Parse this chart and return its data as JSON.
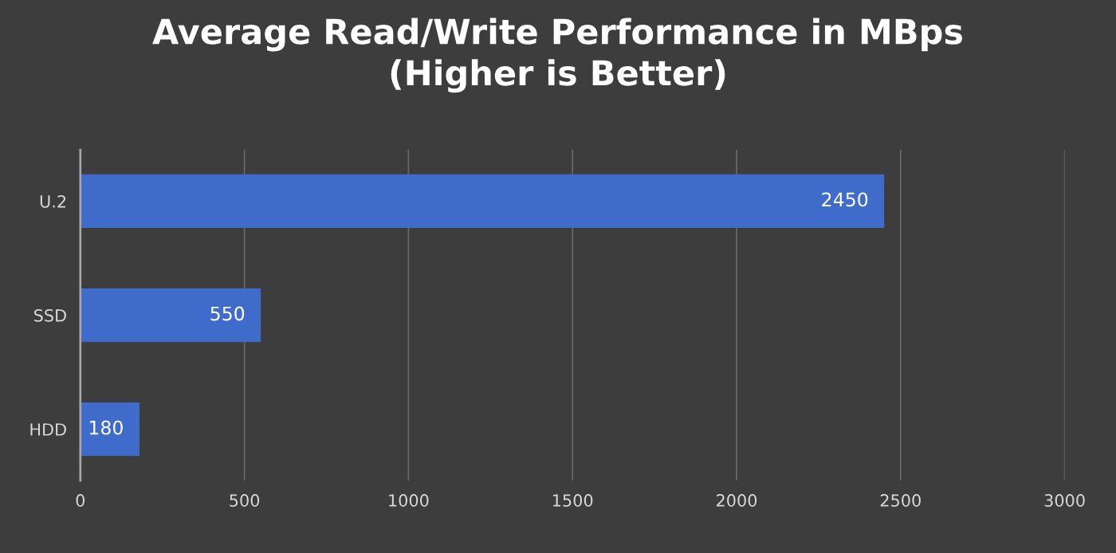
{
  "chart_data": {
    "type": "bar",
    "orientation": "horizontal",
    "title": "Average Read/Write Performance in MBps\n(Higher is Better)",
    "categories": [
      "U.2",
      "SSD",
      "HDD"
    ],
    "values": [
      2450,
      550,
      180
    ],
    "color": "#3f6ccb",
    "xlim": [
      0,
      3000
    ],
    "xticks": [
      0,
      500,
      1000,
      1500,
      2000,
      2500,
      3000
    ],
    "grid": "x",
    "data_labels": true
  }
}
